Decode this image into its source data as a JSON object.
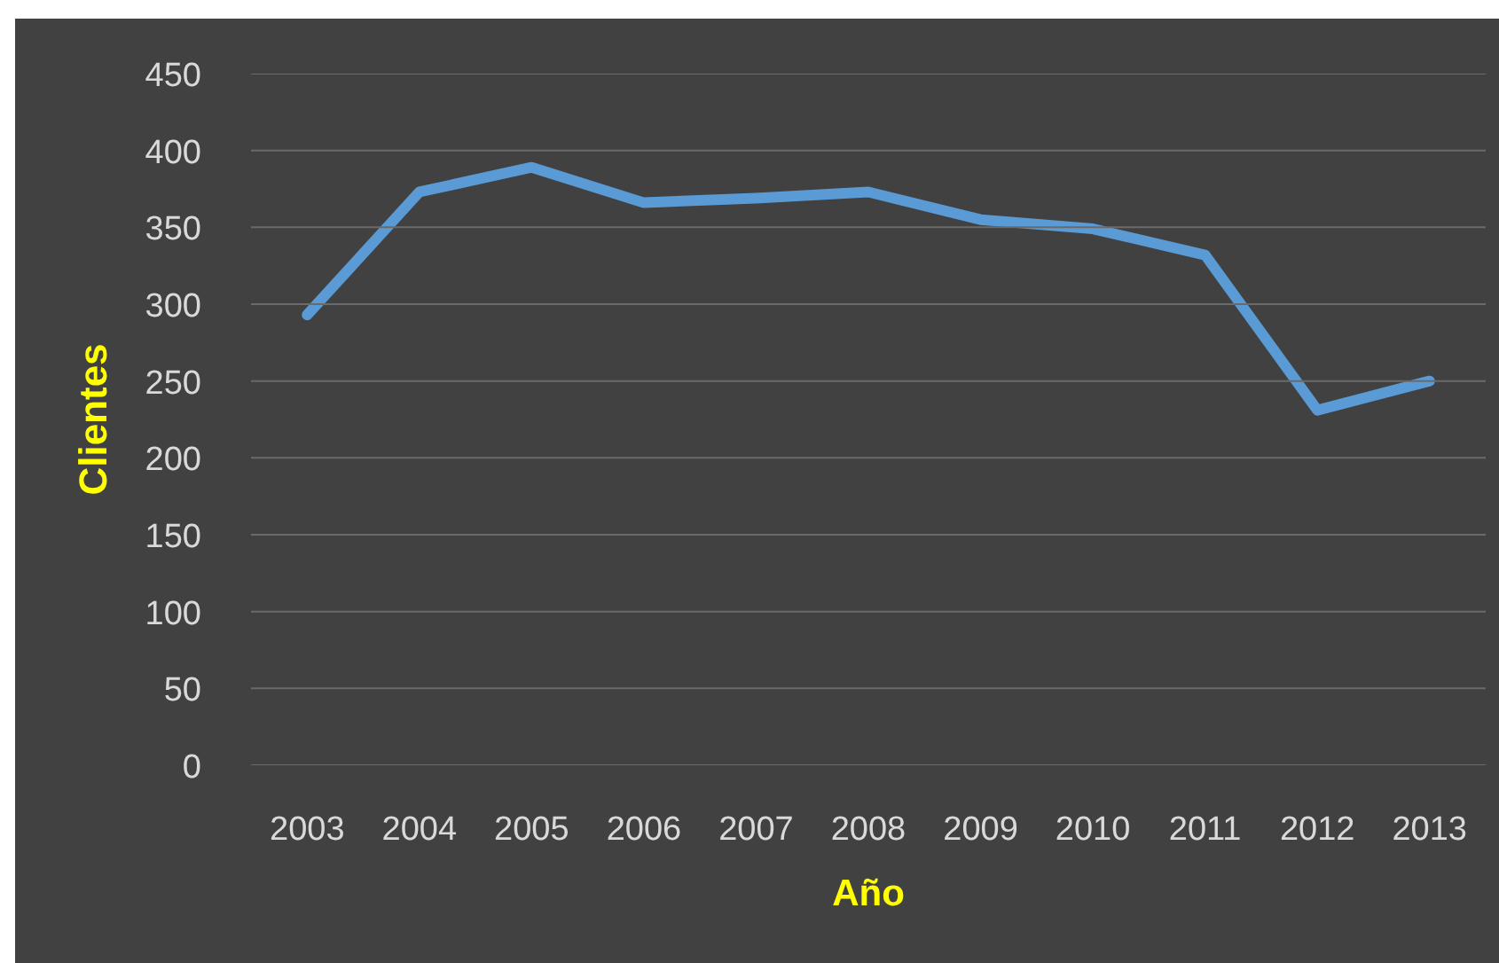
{
  "chart_data": {
    "type": "line",
    "categories": [
      "2003",
      "2004",
      "2005",
      "2006",
      "2007",
      "2008",
      "2009",
      "2010",
      "2011",
      "2012",
      "2013"
    ],
    "series": [
      {
        "color": "#5b9bd5",
        "values": [
          293,
          373,
          389,
          366,
          369,
          373,
          355,
          349,
          332,
          231,
          250
        ]
      }
    ],
    "xlabel": "Año",
    "ylabel": "Clientes",
    "ylim": [
      0,
      450
    ],
    "yticks": [
      0,
      50,
      100,
      150,
      200,
      250,
      300,
      350,
      400,
      450
    ],
    "grid": "y",
    "line_style": "solid"
  }
}
